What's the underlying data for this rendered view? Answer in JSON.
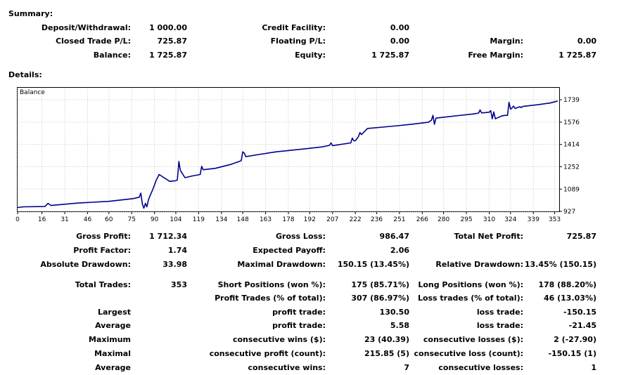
{
  "summary": {
    "heading": "Summary:",
    "deposit_label": "Deposit/Withdrawal:",
    "deposit_value": "1 000.00",
    "credit_label": "Credit Facility:",
    "credit_value": "0.00",
    "closed_label": "Closed Trade P/L:",
    "closed_value": "725.87",
    "floating_label": "Floating P/L:",
    "floating_value": "0.00",
    "margin_label": "Margin:",
    "margin_value": "0.00",
    "balance_label": "Balance:",
    "balance_value": "1 725.87",
    "equity_label": "Equity:",
    "equity_value": "1 725.87",
    "free_margin_label": "Free Margin:",
    "free_margin_value": "1 725.87"
  },
  "details": {
    "heading": "Details:"
  },
  "chart_data": {
    "type": "line",
    "series": [
      {
        "name": "Balance",
        "color": "#00008b",
        "x": [
          0,
          4,
          18,
          20,
          22,
          40,
          60,
          72,
          76,
          80,
          81,
          82,
          83,
          84,
          85,
          86,
          87,
          89,
          91,
          93,
          100,
          104,
          105,
          106,
          107,
          110,
          115,
          120,
          121,
          122,
          130,
          140,
          147,
          148,
          149,
          150,
          160,
          170,
          180,
          190,
          200,
          205,
          206,
          207,
          210,
          219,
          220,
          221,
          222,
          224,
          225,
          226,
          230,
          240,
          250,
          260,
          270,
          272,
          273,
          274,
          275,
          280,
          290,
          300,
          303,
          304,
          305,
          310,
          311,
          312,
          313,
          314,
          318,
          320,
          322,
          323,
          324,
          325,
          326,
          327,
          330,
          331,
          332,
          340,
          350,
          355
        ],
        "y": [
          955,
          960,
          962,
          985,
          970,
          988,
          1000,
          1015,
          1020,
          1030,
          1060,
          980,
          950,
          985,
          960,
          1010,
          1040,
          1090,
          1150,
          1195,
          1145,
          1150,
          1155,
          1290,
          1225,
          1172,
          1185,
          1195,
          1255,
          1230,
          1240,
          1268,
          1295,
          1360,
          1350,
          1325,
          1343,
          1360,
          1372,
          1383,
          1396,
          1407,
          1425,
          1405,
          1410,
          1425,
          1460,
          1440,
          1440,
          1470,
          1500,
          1485,
          1530,
          1540,
          1550,
          1562,
          1575,
          1590,
          1625,
          1560,
          1605,
          1612,
          1624,
          1636,
          1642,
          1665,
          1643,
          1648,
          1660,
          1600,
          1650,
          1600,
          1620,
          1625,
          1625,
          1720,
          1670,
          1680,
          1693,
          1675,
          1688,
          1682,
          1690,
          1700,
          1715,
          1730
        ]
      }
    ],
    "x_ticks": [
      "0",
      "16",
      "31",
      "46",
      "60",
      "75",
      "90",
      "104",
      "119",
      "134",
      "148",
      "163",
      "178",
      "192",
      "207",
      "222",
      "236",
      "251",
      "266",
      "280",
      "295",
      "310",
      "324",
      "339",
      "353"
    ],
    "x_tick_values": [
      0,
      16,
      31,
      46,
      60,
      75,
      90,
      104,
      119,
      134,
      148,
      163,
      178,
      192,
      207,
      222,
      236,
      251,
      266,
      280,
      295,
      310,
      324,
      339,
      353
    ],
    "y_ticks": [
      "1739",
      "1576",
      "1414",
      "1252",
      "1089",
      "927"
    ],
    "y_tick_values": [
      1739,
      1576,
      1414,
      1252,
      1089,
      927
    ],
    "xlim": [
      0,
      356
    ],
    "ylim": [
      927,
      1739
    ],
    "grid": true,
    "legend": "top-left"
  },
  "stats": {
    "gross_profit_label": "Gross Profit:",
    "gross_profit_value": "1 712.34",
    "gross_loss_label": "Gross Loss:",
    "gross_loss_value": "986.47",
    "total_net_profit_label": "Total Net Profit:",
    "total_net_profit_value": "725.87",
    "profit_factor_label": "Profit Factor:",
    "profit_factor_value": "1.74",
    "expected_payoff_label": "Expected Payoff:",
    "expected_payoff_value": "2.06",
    "absolute_drawdown_label": "Absolute Drawdown:",
    "absolute_drawdown_value": "33.98",
    "maximal_drawdown_label": "Maximal Drawdown:",
    "maximal_drawdown_value": "150.15 (13.45%)",
    "relative_drawdown_label": "Relative Drawdown:",
    "relative_drawdown_value": "13.45% (150.15)",
    "total_trades_label": "Total Trades:",
    "total_trades_value": "353",
    "short_positions_label": "Short Positions (won %):",
    "short_positions_value": "175 (85.71%)",
    "long_positions_label": "Long Positions (won %):",
    "long_positions_value": "178 (88.20%)",
    "profit_trades_label": "Profit Trades (% of total):",
    "profit_trades_value": "307 (86.97%)",
    "loss_trades_label": "Loss trades (% of total):",
    "loss_trades_value": "46 (13.03%)",
    "largest_label": "Largest",
    "largest_profit_label": "profit trade:",
    "largest_profit_value": "130.50",
    "largest_loss_label": "loss trade:",
    "largest_loss_value": "-150.15",
    "average_label": "Average",
    "average_profit_label": "profit trade:",
    "average_profit_value": "5.58",
    "average_loss_label": "loss trade:",
    "average_loss_value": "-21.45",
    "maximum_label": "Maximum",
    "max_cons_wins_label": "consecutive wins ($):",
    "max_cons_wins_value": "23 (40.39)",
    "max_cons_losses_label": "consecutive losses ($):",
    "max_cons_losses_value": "2 (-27.90)",
    "maximal_label": "Maximal",
    "maximal_cons_profit_label": "consecutive profit (count):",
    "maximal_cons_profit_value": "215.85 (5)",
    "maximal_cons_loss_label": "consecutive loss (count):",
    "maximal_cons_loss_value": "-150.15 (1)",
    "average2_label": "Average",
    "avg_cons_wins_label": "consecutive wins:",
    "avg_cons_wins_value": "7",
    "avg_cons_losses_label": "consecutive losses:",
    "avg_cons_losses_value": "1"
  }
}
